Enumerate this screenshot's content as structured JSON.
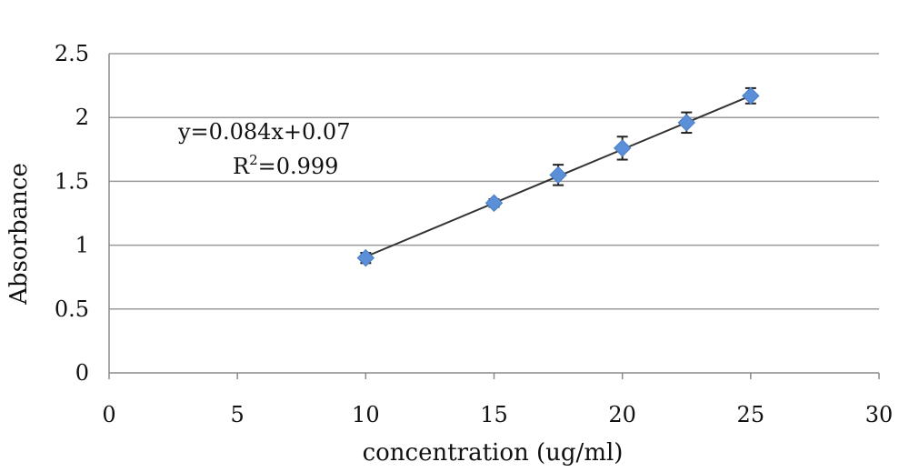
{
  "chart_data": {
    "type": "scatter",
    "title": "",
    "xlabel": "concentration (ug/ml)",
    "ylabel": "Absorbance",
    "xlim": [
      0,
      30
    ],
    "ylim": [
      0,
      2.5
    ],
    "x_ticks": [
      0,
      5,
      10,
      15,
      20,
      25,
      30
    ],
    "y_ticks": [
      0,
      0.5,
      1,
      1.5,
      2,
      2.5
    ],
    "x_tick_labels": [
      "0",
      "5",
      "10",
      "15",
      "20",
      "25",
      "30"
    ],
    "y_tick_labels": [
      "0",
      "0.5",
      "1",
      "1.5",
      "2",
      "2.5"
    ],
    "grid": "horizontal",
    "series": [
      {
        "x": [
          10,
          15,
          17.5,
          20,
          22.5,
          25
        ],
        "y": [
          0.9,
          1.33,
          1.55,
          1.76,
          1.96,
          2.17
        ],
        "error": [
          0.04,
          0.03,
          0.08,
          0.09,
          0.08,
          0.06
        ],
        "color": "#5b8fd8"
      }
    ],
    "trendline": {
      "slope": 0.084,
      "intercept": 0.07,
      "x_range": [
        10,
        25
      ],
      "color": "#333333"
    },
    "annotations": {
      "equation": "y=0.084x+0.07",
      "r_squared_base": "R",
      "r_squared_exp": "2",
      "r_squared_rest": "=0.999"
    }
  }
}
